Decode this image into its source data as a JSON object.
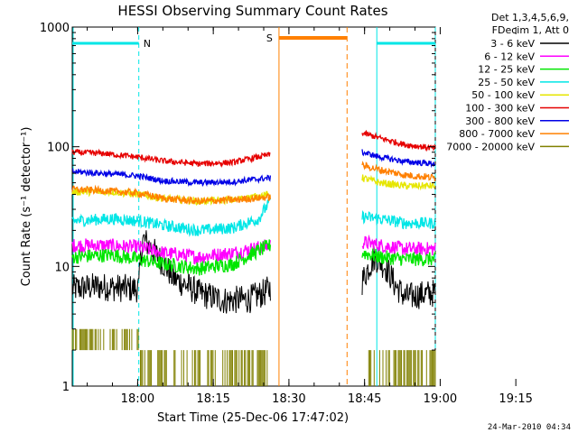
{
  "chart_data": {
    "type": "line",
    "title": "HESSI Observing Summary Count Rates",
    "xlabel": "Start Time (25-Dec-06 17:47:02)",
    "ylabel": "Count Rate (s⁻¹ detector⁻¹)",
    "y_scale": "log",
    "ylim": [
      1,
      1000
    ],
    "x_unit": "minutes after 17:47:02",
    "xlim": [
      0,
      72
    ],
    "x_tick_labels": [
      "18:00",
      "18:15",
      "18:30",
      "18:45",
      "19:00",
      "19:15"
    ],
    "y_tick_labels": [
      "1",
      "10",
      "100",
      "1000"
    ],
    "legend_header": [
      "Det 1,3,4,5,6,9,",
      "FDecim 1, Att 0"
    ],
    "legend_placement": "right, outside plot",
    "footer_timestamp": "24-Mar-2010 04:34",
    "flags": [
      {
        "label": "N",
        "color": "#00e6e6",
        "segments": [
          [
            0,
            13.2
          ],
          [
            60.4,
            72
          ]
        ],
        "dashed_at": [
          13.2,
          72
        ]
      },
      {
        "label": "S",
        "color": "#ff8000",
        "segments": [
          [
            41.0,
            54.5
          ]
        ],
        "dashed_at": [
          54.5
        ]
      }
    ],
    "gaps": [
      [
        39.5,
        57.5
      ]
    ],
    "series": [
      {
        "name": "3 - 6 keV",
        "color": "#000000",
        "seg1": [
          [
            0,
            6.5
          ],
          [
            5,
            6.8
          ],
          [
            12,
            6.5
          ],
          [
            13.2,
            6.6
          ],
          [
            14,
            17
          ],
          [
            17,
            12
          ],
          [
            20,
            8
          ],
          [
            25,
            6
          ],
          [
            30,
            5.2
          ],
          [
            35,
            5.3
          ],
          [
            38,
            6
          ],
          [
            39.3,
            6.6
          ]
        ],
        "seg2": [
          [
            57.5,
            7.5
          ],
          [
            60,
            12
          ],
          [
            62,
            10
          ],
          [
            64,
            7
          ],
          [
            66,
            5.5
          ],
          [
            69,
            5.8
          ],
          [
            72,
            6
          ]
        ]
      },
      {
        "name": "6 - 12 keV",
        "color": "#ff00ff",
        "seg1": [
          [
            0,
            15
          ],
          [
            6,
            15
          ],
          [
            13,
            14.5
          ],
          [
            18,
            13
          ],
          [
            25,
            12
          ],
          [
            32,
            13
          ],
          [
            39.3,
            15
          ]
        ],
        "seg2": [
          [
            57.5,
            16
          ],
          [
            61,
            15
          ],
          [
            66,
            14
          ],
          [
            72,
            14
          ]
        ]
      },
      {
        "name": "12 - 25 keV",
        "color": "#00e600",
        "seg1": [
          [
            0,
            12
          ],
          [
            8,
            12.5
          ],
          [
            13,
            11.5
          ],
          [
            18,
            10.5
          ],
          [
            25,
            9.6
          ],
          [
            32,
            10.5
          ],
          [
            39.3,
            15
          ]
        ],
        "seg2": [
          [
            57.5,
            13
          ],
          [
            61,
            12
          ],
          [
            66,
            11.5
          ],
          [
            72,
            11.5
          ]
        ]
      },
      {
        "name": "25 - 50 keV",
        "color": "#00e6e6",
        "seg1": [
          [
            0,
            24
          ],
          [
            8,
            25
          ],
          [
            13,
            24
          ],
          [
            18,
            22
          ],
          [
            25,
            20
          ],
          [
            32,
            21
          ],
          [
            37,
            25
          ],
          [
            39.3,
            35
          ]
        ],
        "seg2": [
          [
            57.5,
            26
          ],
          [
            61,
            25
          ],
          [
            66,
            23
          ],
          [
            72,
            23
          ]
        ]
      },
      {
        "name": "50 - 100 keV",
        "color": "#e6e600",
        "seg1": [
          [
            0,
            42
          ],
          [
            8,
            42
          ],
          [
            13,
            40
          ],
          [
            18,
            37
          ],
          [
            25,
            35
          ],
          [
            32,
            36
          ],
          [
            39.3,
            40
          ]
        ],
        "seg2": [
          [
            57.5,
            55
          ],
          [
            61,
            50
          ],
          [
            66,
            47
          ],
          [
            72,
            47
          ]
        ]
      },
      {
        "name": "100 - 300 keV",
        "color": "#e60000",
        "seg1": [
          [
            0,
            90
          ],
          [
            6,
            88
          ],
          [
            13,
            82
          ],
          [
            18,
            76
          ],
          [
            25,
            72
          ],
          [
            32,
            74
          ],
          [
            39.3,
            86
          ]
        ],
        "seg2": [
          [
            57.5,
            130
          ],
          [
            61,
            118
          ],
          [
            66,
            104
          ],
          [
            72,
            97
          ]
        ]
      },
      {
        "name": "300 - 800 keV",
        "color": "#0000e6",
        "seg1": [
          [
            0,
            62
          ],
          [
            6,
            60
          ],
          [
            13,
            57
          ],
          [
            18,
            52
          ],
          [
            25,
            50
          ],
          [
            32,
            51
          ],
          [
            39.3,
            55
          ]
        ],
        "seg2": [
          [
            57.5,
            90
          ],
          [
            61,
            82
          ],
          [
            66,
            75
          ],
          [
            72,
            72
          ]
        ]
      },
      {
        "name": "800 - 7000 keV",
        "color": "#ff8000",
        "seg1": [
          [
            0,
            44
          ],
          [
            6,
            43
          ],
          [
            13,
            41
          ],
          [
            18,
            37
          ],
          [
            25,
            35
          ],
          [
            32,
            36
          ],
          [
            39.3,
            38
          ]
        ],
        "seg2": [
          [
            57.5,
            70
          ],
          [
            61,
            64
          ],
          [
            66,
            58
          ],
          [
            72,
            55
          ]
        ]
      },
      {
        "name": "7000 - 20000 keV",
        "color": "#808000",
        "seg1": [
          [
            0,
            2
          ],
          [
            13.2,
            2
          ],
          [
            13.3,
            1
          ],
          [
            39.3,
            1
          ]
        ],
        "seg2": [
          [
            57.5,
            1
          ],
          [
            72,
            1
          ]
        ]
      }
    ]
  }
}
